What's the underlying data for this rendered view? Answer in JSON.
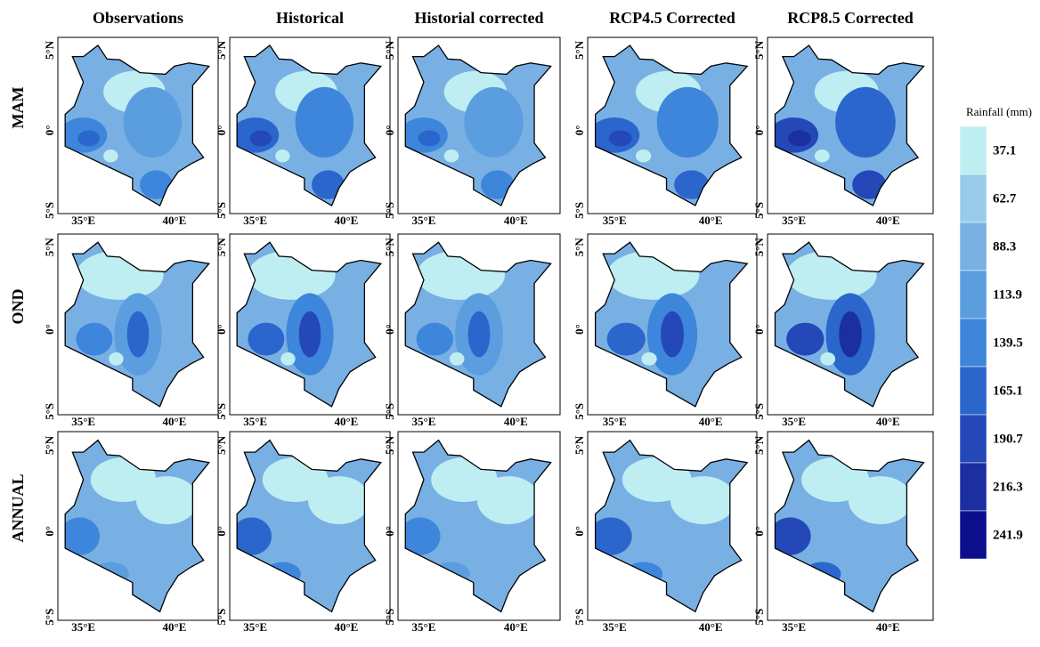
{
  "columns": [
    "Observations",
    "Historical",
    "Historial corrected",
    "RCP4.5 Corrected",
    "RCP8.5 Corrected"
  ],
  "rows": [
    "MAM",
    "OND",
    "ANNUAL"
  ],
  "axis": {
    "lat": [
      "5°N",
      "0°",
      "5°S"
    ],
    "lon": [
      "35°E",
      "40°E"
    ]
  },
  "legend": {
    "title": "Rainfall (mm)",
    "items": [
      {
        "value": 37.1,
        "color": "#bfeef2"
      },
      {
        "value": 62.7,
        "color": "#98cbea"
      },
      {
        "value": 88.3,
        "color": "#78b0e4"
      },
      {
        "value": 113.9,
        "color": "#5a9ee0"
      },
      {
        "value": 139.5,
        "color": "#3d86dc"
      },
      {
        "value": 165.1,
        "color": "#2a66cc"
      },
      {
        "value": 190.7,
        "color": "#2448b8"
      },
      {
        "value": 216.3,
        "color": "#1b2fa0"
      },
      {
        "value": 241.9,
        "color": "#0c0f8c"
      }
    ]
  }
}
